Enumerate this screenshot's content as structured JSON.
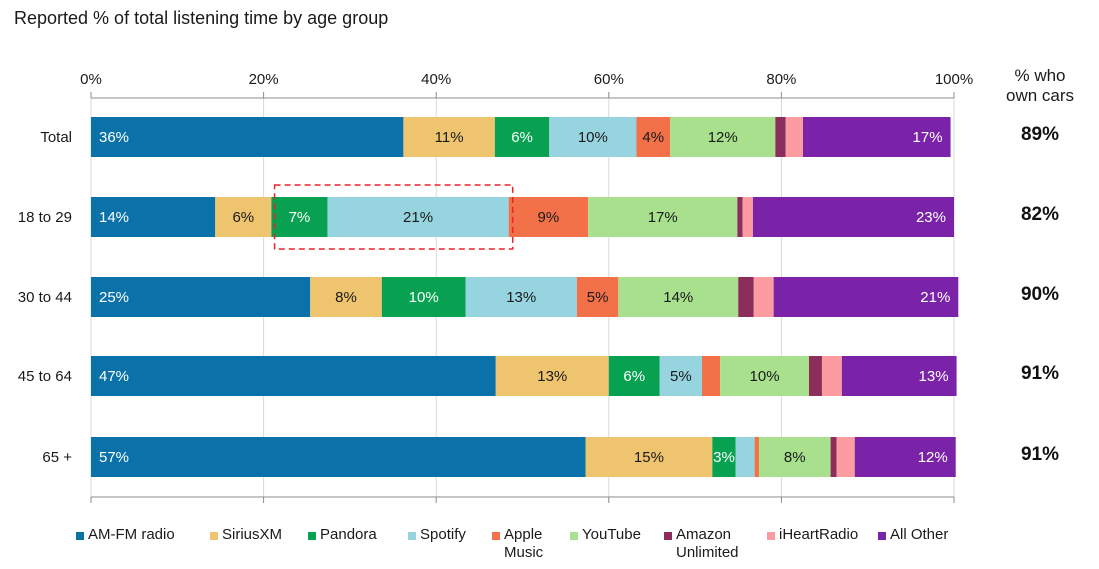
{
  "title": "Reported % of total listening time by age group",
  "owner_header": [
    "% who",
    "own cars"
  ],
  "chart_data": {
    "type": "bar",
    "orientation": "horizontal",
    "stacked": true,
    "xlim": [
      0,
      100
    ],
    "x_ticks": [
      "0%",
      "20%",
      "40%",
      "60%",
      "80%",
      "100%"
    ],
    "grid": true,
    "legend_position": "bottom",
    "categories": [
      "Total",
      "18 to 29",
      "30 to 44",
      "45 to 64",
      "65 +"
    ],
    "series": [
      {
        "name": "AM-FM radio",
        "color": "#0a72a8",
        "label_color": "#ffffff",
        "values": [
          36.2,
          14.4,
          25.4,
          46.9,
          57.3
        ],
        "labels": [
          "36%",
          "14%",
          "25%",
          "47%",
          "57%"
        ]
      },
      {
        "name": "SiriusXM",
        "color": "#efc46f",
        "label_color": "#1a1a1a",
        "values": [
          10.6,
          6.5,
          8.3,
          13.1,
          14.7
        ],
        "labels": [
          "11%",
          "6%",
          "8%",
          "13%",
          "15%"
        ]
      },
      {
        "name": "Pandora",
        "color": "#07a151",
        "label_color": "#ffffff",
        "values": [
          6.3,
          6.5,
          9.7,
          5.9,
          2.7
        ],
        "labels": [
          "6%",
          "7%",
          "10%",
          "6%",
          "3%"
        ]
      },
      {
        "name": "Spotify",
        "color": "#96d4e0",
        "label_color": "#1a1a1a",
        "values": [
          10.1,
          21.0,
          12.9,
          4.9,
          2.2
        ],
        "labels": [
          "10%",
          "21%",
          "13%",
          "5%",
          ""
        ]
      },
      {
        "name": "Apple Music",
        "color": "#f27148",
        "label_color": "#1a1a1a",
        "values": [
          3.9,
          9.2,
          4.8,
          2.1,
          0.5
        ],
        "labels": [
          "4%",
          "9%",
          "5%",
          "",
          ""
        ]
      },
      {
        "name": "YouTube",
        "color": "#a8e08e",
        "label_color": "#1a1a1a",
        "values": [
          12.2,
          17.3,
          13.9,
          10.3,
          8.3
        ],
        "labels": [
          "12%",
          "17%",
          "14%",
          "10%",
          "8%"
        ]
      },
      {
        "name": "Amazon Unlimited",
        "color": "#8c2e5c",
        "label_color": "#ffffff",
        "values": [
          1.2,
          0.6,
          1.8,
          1.5,
          0.7
        ],
        "labels": [
          "",
          "",
          "",
          "",
          ""
        ]
      },
      {
        "name": "iHeartRadio",
        "color": "#fc9ca2",
        "label_color": "#1a1a1a",
        "values": [
          2.0,
          1.2,
          2.3,
          2.3,
          2.1
        ],
        "labels": [
          "",
          "",
          "",
          "",
          ""
        ]
      },
      {
        "name": "All Other",
        "color": "#7a23a8",
        "label_color": "#ffffff",
        "values": [
          17.1,
          23.3,
          21.4,
          13.3,
          11.7
        ],
        "labels": [
          "17%",
          "23%",
          "21%",
          "13%",
          "12%"
        ]
      }
    ],
    "owner_pct": [
      "89%",
      "82%",
      "90%",
      "91%",
      "91%"
    ],
    "highlight": {
      "category": "18 to 29",
      "series": [
        "Pandora",
        "Spotify"
      ],
      "style": "dashed red box"
    }
  }
}
